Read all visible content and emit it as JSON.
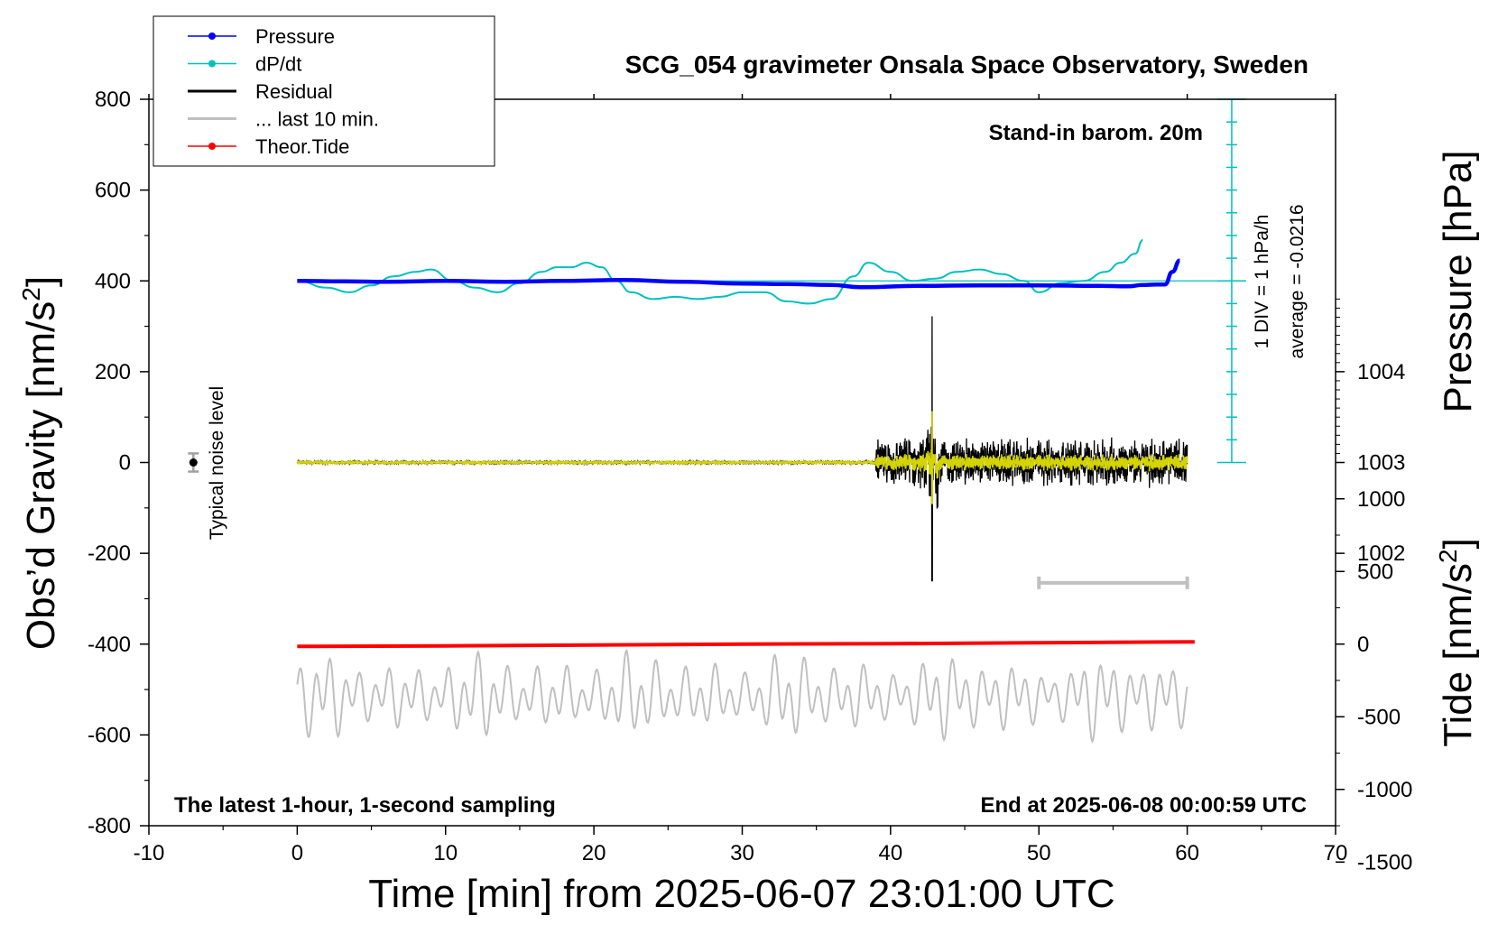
{
  "chart_data": {
    "type": "line",
    "title": "SCG_054 gravimeter Onsala Space Observatory, Sweden",
    "xlabel": "Time [min] from 2025-06-07 23:01:00 UTC",
    "ylabel_left": "Obs’d Gravity [nm/s",
    "ylabel_left_sup": "2",
    "ylabel_left_close": "]",
    "ylabel_pressure": "Pressure [hPa]",
    "ylabel_tide": "Tide [nm/s",
    "ylabel_tide_sup": "2",
    "ylabel_tide_close": "]",
    "xlim": [
      -10,
      70
    ],
    "ylim": [
      -800,
      800
    ],
    "xticks": [
      -10,
      0,
      10,
      20,
      30,
      40,
      50,
      60,
      70
    ],
    "xtick_labels": [
      "-10",
      "0",
      "10",
      "20",
      "30",
      "40",
      "50",
      "60",
      "70"
    ],
    "yticks": [
      -800,
      -600,
      -400,
      -200,
      0,
      200,
      400,
      600,
      800
    ],
    "ytick_labels": [
      "-800",
      "-600",
      "-400",
      "-200",
      "0",
      "200",
      "400",
      "600",
      "800"
    ],
    "pressure_axis": {
      "ticks": [
        1002,
        1003,
        1004
      ],
      "tick_labels": [
        "1002",
        "1003",
        "1004"
      ],
      "zero_gravity_at": 1003,
      "hpa_per_gravity_unit": 0.005
    },
    "tide_axis": {
      "ticks": [
        -1500,
        -1000,
        -500,
        0,
        500,
        1000
      ],
      "tick_labels": [
        "-1500",
        "-1000",
        "-500",
        "0",
        "500",
        "1000"
      ],
      "gravity_offset": -400,
      "scale": 0.32
    },
    "legend": {
      "position": "top-left",
      "entries": [
        {
          "label": "Pressure",
          "color": "#0000ff",
          "marker": true
        },
        {
          "label": "dP/dt",
          "color": "#00c0c0",
          "marker": true
        },
        {
          "label": "Residual",
          "color": "#000000",
          "marker": false
        },
        {
          "label": "... last 10 min.",
          "color": "#c0c0c0",
          "marker": false
        },
        {
          "label": "Theor.Tide",
          "color": "#ff0000",
          "marker": true
        }
      ]
    },
    "annotations": {
      "barometer": "Stand-in barom. 20m",
      "div_scale": "1 DIV = 1 hPa/h",
      "average": "average = -0.0216",
      "noise_level": "Typical noise level",
      "sampling": "The latest 1-hour, 1-second sampling",
      "end_time": "End at 2025-06-08 00:00:59 UTC"
    },
    "colors": {
      "pressure": "#0000ff",
      "dpdt": "#00c0c0",
      "residual": "#000000",
      "residual_filtered": "#d4d400",
      "last10": "#c0c0c0",
      "tide": "#ff0000",
      "noise_bar": "#a0a0a0"
    },
    "series": [
      {
        "name": "Pressure",
        "x": [
          0,
          3,
          6,
          10,
          14,
          18,
          22,
          26,
          30,
          33,
          36,
          38,
          42,
          46,
          50,
          54,
          56,
          57,
          58,
          58.5,
          59,
          59.5
        ],
        "y": [
          400,
          399,
          398,
          400,
          398,
          400,
          402,
          398,
          394,
          393,
          391,
          386,
          389,
          390,
          390,
          389,
          388,
          391,
          392,
          392,
          420,
          445
        ]
      },
      {
        "name": "dP/dt",
        "x": [
          0,
          2,
          3.5,
          5,
          6.5,
          8,
          9,
          10.5,
          12,
          13.5,
          15,
          16.5,
          17.5,
          18.5,
          19.5,
          20.5,
          21.5,
          22.5,
          24,
          25.5,
          27,
          28.5,
          30,
          31.5,
          33,
          34.5,
          36,
          37.5,
          38.5,
          40,
          41.5,
          43,
          44.5,
          46,
          47.5,
          49,
          50,
          51.5,
          53,
          54.5,
          55.5,
          56.5,
          57
        ],
        "y": [
          400,
          385,
          375,
          390,
          410,
          420,
          425,
          400,
          385,
          375,
          395,
          420,
          430,
          430,
          440,
          430,
          400,
          375,
          360,
          365,
          360,
          365,
          375,
          375,
          355,
          350,
          360,
          410,
          440,
          420,
          400,
          405,
          420,
          425,
          415,
          400,
          375,
          395,
          400,
          420,
          440,
          460,
          490
        ]
      },
      {
        "name": "Theor.Tide",
        "x": [
          0,
          10,
          20,
          30,
          40,
          50,
          60.5
        ],
        "y": [
          -405,
          -404,
          -402,
          -400,
          -399,
          -397,
          -395
        ]
      }
    ],
    "residual_model": {
      "start": 0,
      "end": 60,
      "quiet_until": 39,
      "quiet_amplitude": 3,
      "noisy_amplitude": 45,
      "spike_at": 42.8,
      "spike_max": 322,
      "spike_min": -262
    },
    "last10_model": {
      "start": 0,
      "end": 60,
      "center": -515,
      "amplitude": 50
    },
    "noise_marker": {
      "x": -7,
      "y": 0,
      "half_range": 20
    },
    "scale_bar": {
      "x_start": 50,
      "x_end": 60,
      "y": -265
    },
    "div_axis": {
      "x": 63,
      "y_start": 0,
      "y_end": 800,
      "n_divisions": 16
    }
  }
}
